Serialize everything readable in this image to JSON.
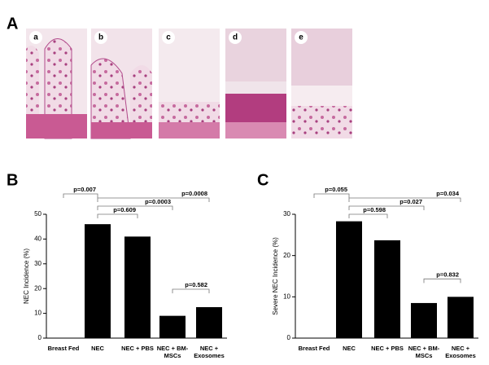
{
  "figure": {
    "panel_labels": [
      "A",
      "B",
      "C"
    ],
    "image_labels": [
      "a",
      "b",
      "c",
      "d",
      "e"
    ]
  },
  "chart_data": [
    {
      "type": "bar",
      "y_label": "NEC Incidence (%)",
      "categories": [
        "Breast Fed",
        "NEC",
        "NEC + PBS",
        "NEC + BM-MSCs",
        "NEC + Exosomes"
      ],
      "values": [
        0,
        46,
        41,
        9,
        12.5
      ],
      "color": "#000000",
      "ylim": [
        0,
        50
      ],
      "yticks": [
        0,
        10,
        20,
        30,
        40,
        50
      ],
      "comparisons": [
        {
          "label": "p=0.007",
          "from": 0,
          "to": 1
        },
        {
          "label": "p=0.0008",
          "from": 1,
          "to": 4
        },
        {
          "label": "p=0.0003",
          "from": 1,
          "to": 3
        },
        {
          "label": "p=0.609",
          "from": 1,
          "to": 2
        },
        {
          "label": "p=0.582",
          "from": 3,
          "to": 4
        }
      ]
    },
    {
      "type": "bar",
      "y_label": "Severe NEC Incidence (%)",
      "categories": [
        "Breast Fed",
        "NEC",
        "NEC + PBS",
        "NEC + BM-MSCs",
        "NEC + Exosomes"
      ],
      "values": [
        0,
        28.3,
        23.7,
        8.5,
        10
      ],
      "color": "#000000",
      "ylim": [
        0,
        30
      ],
      "yticks": [
        0,
        10,
        20,
        30
      ],
      "comparisons": [
        {
          "label": "p=0.055",
          "from": 0,
          "to": 1
        },
        {
          "label": "p=0.034",
          "from": 1,
          "to": 4
        },
        {
          "label": "p=0.027",
          "from": 1,
          "to": 3
        },
        {
          "label": "p=0.598",
          "from": 1,
          "to": 2
        },
        {
          "label": "p=0.832",
          "from": 3,
          "to": 4
        }
      ]
    }
  ]
}
